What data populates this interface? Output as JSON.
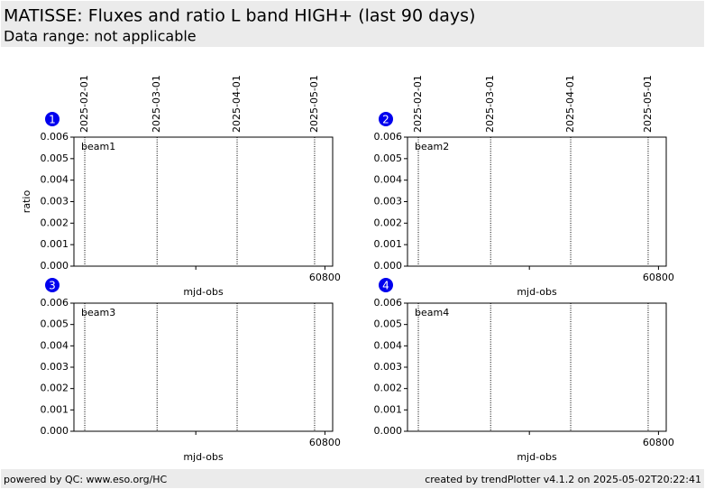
{
  "header": {
    "title": "MATISSE: Fluxes and ratio L band HIGH+ (last 90 days)",
    "subtitle": "Data range: not applicable"
  },
  "chart_data": [
    {
      "type": "line",
      "badge": "1",
      "label": "beam1",
      "xlabel": "mjd-obs",
      "ylabel": "ratio",
      "xlim": [
        60702.8,
        60803
      ],
      "xticks": [
        {
          "value": 60750,
          "label": null
        },
        60800
      ],
      "ylim": [
        0,
        0.006
      ],
      "yticks": [
        {
          "value": 0,
          "label": "0.000"
        },
        {
          "value": 0.001,
          "label": "0.001"
        },
        {
          "value": 0.002,
          "label": "0.002"
        },
        {
          "value": 0.003,
          "label": "0.003"
        },
        {
          "value": 0.004,
          "label": "0.004"
        },
        {
          "value": 0.005,
          "label": "0.005"
        },
        {
          "value": 0.006,
          "label": "0.006"
        }
      ],
      "vlines": [
        {
          "value": 60707,
          "label": "2025-02-01"
        },
        {
          "value": 60735,
          "label": "2025-03-01"
        },
        {
          "value": 60766,
          "label": "2025-04-01"
        },
        {
          "value": 60796,
          "label": "2025-05-01"
        }
      ]
    },
    {
      "type": "line",
      "badge": "2",
      "label": "beam2",
      "xlabel": "mjd-obs",
      "xlim": [
        60702.8,
        60803
      ],
      "xticks": [
        {
          "value": 60750,
          "label": null
        },
        60800
      ],
      "ylim": [
        0,
        0.006
      ],
      "yticks": [
        {
          "value": 0,
          "label": "0.000"
        },
        {
          "value": 0.001,
          "label": "0.001"
        },
        {
          "value": 0.002,
          "label": "0.002"
        },
        {
          "value": 0.003,
          "label": "0.003"
        },
        {
          "value": 0.004,
          "label": "0.004"
        },
        {
          "value": 0.005,
          "label": "0.005"
        },
        {
          "value": 0.006,
          "label": "0.006"
        }
      ],
      "vlines": [
        {
          "value": 60707,
          "label": "2025-02-01"
        },
        {
          "value": 60735,
          "label": "2025-03-01"
        },
        {
          "value": 60766,
          "label": "2025-04-01"
        },
        {
          "value": 60796,
          "label": "2025-05-01"
        }
      ]
    },
    {
      "type": "line",
      "badge": "3",
      "label": "beam3",
      "xlabel": "mjd-obs",
      "xlim": [
        60702.8,
        60803
      ],
      "xticks": [
        {
          "value": 60750,
          "label": null
        },
        60800
      ],
      "ylim": [
        0,
        0.006
      ],
      "yticks": [
        {
          "value": 0,
          "label": "0.000"
        },
        {
          "value": 0.001,
          "label": "0.001"
        },
        {
          "value": 0.002,
          "label": "0.002"
        },
        {
          "value": 0.003,
          "label": "0.003"
        },
        {
          "value": 0.004,
          "label": "0.004"
        },
        {
          "value": 0.005,
          "label": "0.005"
        },
        {
          "value": 0.006,
          "label": "0.006"
        }
      ],
      "vlines": [
        60707,
        60735,
        60766,
        60796
      ]
    },
    {
      "type": "line",
      "badge": "4",
      "label": "beam4",
      "xlabel": "mjd-obs",
      "xlim": [
        60702.8,
        60803
      ],
      "xticks": [
        {
          "value": 60750,
          "label": null
        },
        60800
      ],
      "ylim": [
        0,
        0.006
      ],
      "yticks": [
        {
          "value": 0,
          "label": "0.000"
        },
        {
          "value": 0.001,
          "label": "0.001"
        },
        {
          "value": 0.002,
          "label": "0.002"
        },
        {
          "value": 0.003,
          "label": "0.003"
        },
        {
          "value": 0.004,
          "label": "0.004"
        },
        {
          "value": 0.005,
          "label": "0.005"
        },
        {
          "value": 0.006,
          "label": "0.006"
        }
      ],
      "vlines": [
        60707,
        60735,
        60766,
        60796
      ]
    }
  ],
  "footer": {
    "left": "powered by QC: www.eso.org/HC",
    "right": "created by trendPlotter v4.1.2 on 2025-05-02T20:22:41"
  }
}
